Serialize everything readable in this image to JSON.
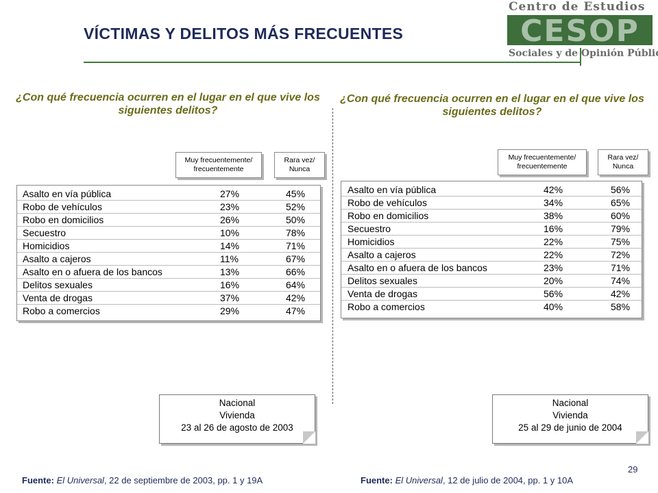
{
  "title": "VÍCTIMAS Y DELITOS MÁS FRECUENTES",
  "logo": {
    "top_text": "Centro de Estudios",
    "mark_text": "CESOP",
    "bottom_text": "Sociales y de Opinión Pública"
  },
  "left": {
    "question": "¿Con qué frecuencia ocurren en el lugar en el que vive los siguientes delitos?",
    "header_freq": "Muy frecuentemente/\nfrecuentemente",
    "header_rare": "Rara vez/\nNunca",
    "rows": [
      {
        "label": "Asalto en vía pública",
        "freq": "27%",
        "rare": "45%"
      },
      {
        "label": "Robo de vehículos",
        "freq": "23%",
        "rare": "52%"
      },
      {
        "label": "Robo en domicilios",
        "freq": "26%",
        "rare": "50%"
      },
      {
        "label": "Secuestro",
        "freq": "10%",
        "rare": "78%"
      },
      {
        "label": "Homicidios",
        "freq": "14%",
        "rare": "71%"
      },
      {
        "label": "Asalto a cajeros",
        "freq": "11%",
        "rare": "67%"
      },
      {
        "label": "Asalto en o afuera de los bancos",
        "freq": "13%",
        "rare": "66%"
      },
      {
        "label": "Delitos sexuales",
        "freq": "16%",
        "rare": "64%"
      },
      {
        "label": "Venta de drogas",
        "freq": "37%",
        "rare": "42%"
      },
      {
        "label": "Robo a comercios",
        "freq": "29%",
        "rare": "47%"
      }
    ],
    "note": {
      "line1": "Nacional",
      "line2": "Vivienda",
      "line3": "23 al 26 de agosto de 2003"
    },
    "source": {
      "prefix": "Fuente:",
      "publication": "El Universal",
      "detail": ", 22 de septiembre de 2003, pp. 1 y 19A"
    }
  },
  "right": {
    "question": "¿Con qué frecuencia ocurren en el lugar en el que vive los siguientes delitos?",
    "header_freq": "Muy frecuentemente/\nfrecuentemente",
    "header_rare": "Rara vez/\nNunca",
    "rows": [
      {
        "label": "Asalto en vía pública",
        "freq": "42%",
        "rare": "56%"
      },
      {
        "label": "Robo de vehículos",
        "freq": "34%",
        "rare": "65%"
      },
      {
        "label": "Robo en domicilios",
        "freq": "38%",
        "rare": "60%"
      },
      {
        "label": "Secuestro",
        "freq": "16%",
        "rare": "79%"
      },
      {
        "label": "Homicidios",
        "freq": "22%",
        "rare": "75%"
      },
      {
        "label": "Asalto a cajeros",
        "freq": "22%",
        "rare": "72%"
      },
      {
        "label": "Asalto en o afuera de los bancos",
        "freq": "23%",
        "rare": "71%"
      },
      {
        "label": "Delitos sexuales",
        "freq": "20%",
        "rare": "74%"
      },
      {
        "label": "Venta de drogas",
        "freq": "56%",
        "rare": "42%"
      },
      {
        "label": "Robo a comercios",
        "freq": "40%",
        "rare": "58%"
      }
    ],
    "note": {
      "line1": "Nacional",
      "line2": "Vivienda",
      "line3": "25 al 29 de junio de 2004"
    },
    "source": {
      "prefix": "Fuente:",
      "publication": "El Universal",
      "detail": ", 12 de julio de 2004, pp. 1 y 10A"
    }
  },
  "page_number": "29"
}
